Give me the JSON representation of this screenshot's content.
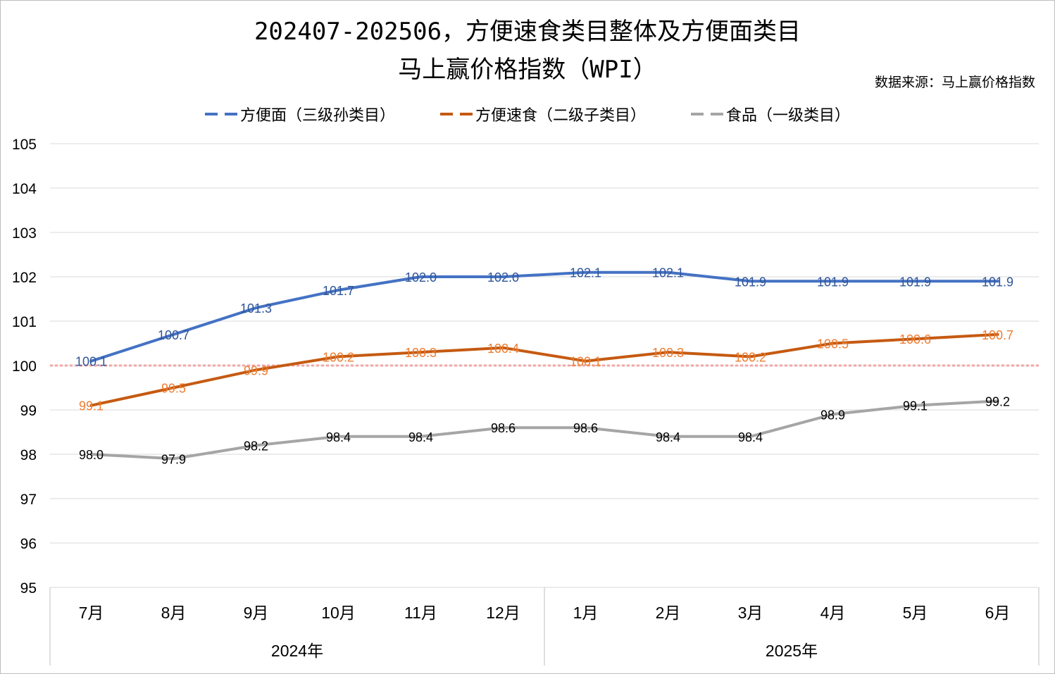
{
  "chart_data": {
    "type": "line",
    "title_line1": "202407-202506，方便速食类目整体及方便面类目",
    "title_line2": "马上赢价格指数（WPI）",
    "source": "数据来源：马上赢价格指数",
    "categories": [
      "7月",
      "8月",
      "9月",
      "10月",
      "11月",
      "12月",
      "1月",
      "2月",
      "3月",
      "4月",
      "5月",
      "6月"
    ],
    "year_groups": [
      {
        "label": "2024年",
        "count": 6
      },
      {
        "label": "2025年",
        "count": 6
      }
    ],
    "ylim": [
      95,
      105
    ],
    "yticks": [
      "95",
      "96",
      "97",
      "98",
      "99",
      "100",
      "101",
      "102",
      "103",
      "104",
      "105"
    ],
    "reference_line": 100,
    "grid": true,
    "legend_position": "top",
    "series": [
      {
        "name": "方便面（三级孙类目）",
        "color": "#4472C4",
        "label_color": "#2F5597",
        "values": [
          100.1,
          100.7,
          101.3,
          101.7,
          102.0,
          102.0,
          102.1,
          102.1,
          101.9,
          101.9,
          101.9,
          101.9
        ]
      },
      {
        "name": "方便速食（二级子类目）",
        "color": "#C55A11",
        "label_color": "#ED7D31",
        "values": [
          99.1,
          99.5,
          99.9,
          100.2,
          100.3,
          100.4,
          100.1,
          100.3,
          100.2,
          100.5,
          100.6,
          100.7
        ]
      },
      {
        "name": "食品（一级类目）",
        "color": "#A5A5A5",
        "label_color": "#000000",
        "values": [
          98.0,
          97.9,
          98.2,
          98.4,
          98.4,
          98.6,
          98.6,
          98.4,
          98.4,
          98.9,
          99.1,
          99.2
        ]
      }
    ]
  }
}
